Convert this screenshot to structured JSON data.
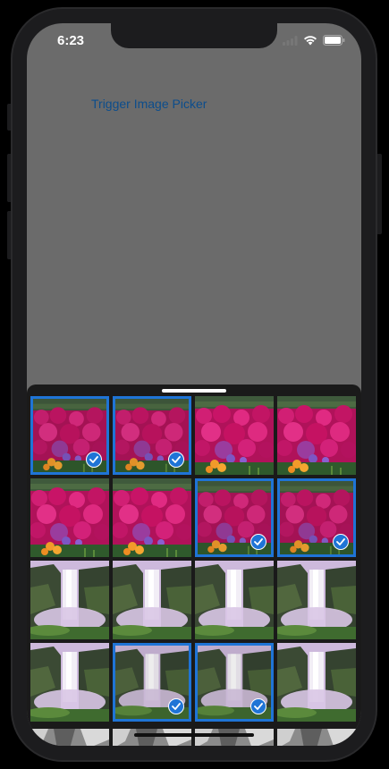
{
  "status_bar": {
    "time": "6:23"
  },
  "main": {
    "trigger_label": "Trigger Image Picker"
  },
  "picker": {
    "accent_color": "#1f74d6",
    "thumbnails": [
      {
        "kind": "flowers",
        "selected": true
      },
      {
        "kind": "flowers",
        "selected": true
      },
      {
        "kind": "flowers",
        "selected": false
      },
      {
        "kind": "flowers",
        "selected": false
      },
      {
        "kind": "flowers",
        "selected": false
      },
      {
        "kind": "flowers",
        "selected": false
      },
      {
        "kind": "flowers",
        "selected": true
      },
      {
        "kind": "flowers",
        "selected": true
      },
      {
        "kind": "waterfall",
        "selected": false
      },
      {
        "kind": "waterfall",
        "selected": false
      },
      {
        "kind": "waterfall",
        "selected": false
      },
      {
        "kind": "waterfall",
        "selected": false
      },
      {
        "kind": "waterfall",
        "selected": false
      },
      {
        "kind": "waterfall",
        "selected": true
      },
      {
        "kind": "waterfall",
        "selected": true
      },
      {
        "kind": "waterfall",
        "selected": false
      }
    ],
    "partial_row_kind": "rocks"
  }
}
